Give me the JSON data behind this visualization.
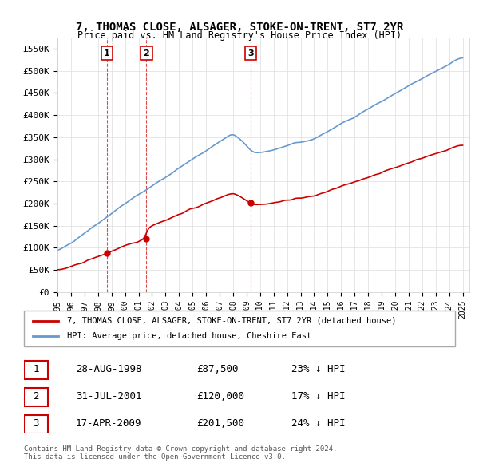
{
  "title": "7, THOMAS CLOSE, ALSAGER, STOKE-ON-TRENT, ST7 2YR",
  "subtitle": "Price paid vs. HM Land Registry's House Price Index (HPI)",
  "ylim": [
    0,
    575000
  ],
  "yticks": [
    0,
    50000,
    100000,
    150000,
    200000,
    250000,
    300000,
    350000,
    400000,
    450000,
    500000,
    550000
  ],
  "ytick_labels": [
    "£0",
    "£50K",
    "£100K",
    "£150K",
    "£200K",
    "£250K",
    "£300K",
    "£350K",
    "£400K",
    "£450K",
    "£500K",
    "£550K"
  ],
  "sale_dates": [
    1998.66,
    2001.58,
    2009.29
  ],
  "sale_prices": [
    87500,
    120000,
    201500
  ],
  "sale_labels": [
    "1",
    "2",
    "3"
  ],
  "legend_red": "7, THOMAS CLOSE, ALSAGER, STOKE-ON-TRENT, ST7 2YR (detached house)",
  "legend_blue": "HPI: Average price, detached house, Cheshire East",
  "table_data": [
    [
      "1",
      "28-AUG-1998",
      "£87,500",
      "23% ↓ HPI"
    ],
    [
      "2",
      "31-JUL-2001",
      "£120,000",
      "17% ↓ HPI"
    ],
    [
      "3",
      "17-APR-2009",
      "£201,500",
      "24% ↓ HPI"
    ]
  ],
  "footer": "Contains HM Land Registry data © Crown copyright and database right 2024.\nThis data is licensed under the Open Government Licence v3.0.",
  "red_color": "#cc0000",
  "blue_color": "#6699cc",
  "dashed_color": "#cc0000"
}
